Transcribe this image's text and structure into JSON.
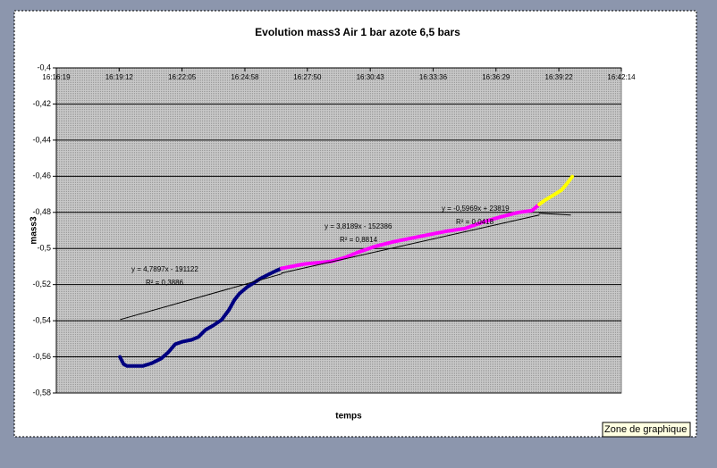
{
  "chart_data": {
    "type": "line",
    "title": "Evolution mass3 Air 1 bar azote 6,5 bars",
    "xlabel": "temps",
    "ylabel": "mass3",
    "xlim": [
      58579,
      60134
    ],
    "xticks": [
      {
        "value": 58579,
        "label": "16:16:19"
      },
      {
        "value": 58752,
        "label": "16:19:12"
      },
      {
        "value": 58925,
        "label": "16:22:05"
      },
      {
        "value": 59098,
        "label": "16:24:58"
      },
      {
        "value": 59270,
        "label": "16:27:50"
      },
      {
        "value": 59443,
        "label": "16:30:43"
      },
      {
        "value": 59616,
        "label": "16:33:36"
      },
      {
        "value": 59789,
        "label": "16:36:29"
      },
      {
        "value": 59962,
        "label": "16:39:22"
      },
      {
        "value": 60134,
        "label": "16:42:14"
      }
    ],
    "ylim": [
      -0.58,
      -0.4
    ],
    "yticks": [
      {
        "value": -0.4,
        "label": "-0,4"
      },
      {
        "value": -0.42,
        "label": "-0,42"
      },
      {
        "value": -0.44,
        "label": "-0,44"
      },
      {
        "value": -0.46,
        "label": "-0,46"
      },
      {
        "value": -0.48,
        "label": "-0,48"
      },
      {
        "value": -0.5,
        "label": "-0,5"
      },
      {
        "value": -0.52,
        "label": "-0,52"
      },
      {
        "value": -0.54,
        "label": "-0,54"
      },
      {
        "value": -0.56,
        "label": "-0,56"
      },
      {
        "value": -0.58,
        "label": "-0,58"
      }
    ],
    "grid": true,
    "series": [
      {
        "color": "#000080",
        "x": [
          58754,
          58764,
          58773,
          58793,
          58818,
          58842,
          58867,
          58887,
          58906,
          58926,
          58951,
          58970,
          58990,
          59010,
          59034,
          59054,
          59069,
          59083,
          59103,
          59123,
          59142,
          59162,
          59182,
          59199
        ],
        "values": [
          -0.56,
          -0.564,
          -0.565,
          -0.565,
          -0.565,
          -0.5635,
          -0.561,
          -0.5575,
          -0.553,
          -0.5516,
          -0.5506,
          -0.549,
          -0.545,
          -0.5427,
          -0.5395,
          -0.534,
          -0.5285,
          -0.525,
          -0.5215,
          -0.519,
          -0.5165,
          -0.5145,
          -0.5125,
          -0.511
        ]
      },
      {
        "color": "#ff00ff",
        "x": [
          59199,
          59261,
          59334,
          59371,
          59408,
          59457,
          59507,
          59556,
          59605,
          59654,
          59704,
          59753,
          59802,
          59851,
          59888,
          59908
        ],
        "values": [
          -0.511,
          -0.5086,
          -0.5072,
          -0.5052,
          -0.5022,
          -0.4988,
          -0.4963,
          -0.4943,
          -0.4923,
          -0.4904,
          -0.4889,
          -0.4854,
          -0.4825,
          -0.48,
          -0.479,
          -0.4756
        ]
      },
      {
        "color": "#ffff00",
        "x": [
          59908,
          59925,
          59950,
          59969,
          59984,
          59999
        ],
        "values": [
          -0.4756,
          -0.4731,
          -0.4701,
          -0.4677,
          -0.4642,
          -0.4602
        ]
      }
    ],
    "trendlines": [
      {
        "x": [
          58756,
          59199
        ],
        "values": [
          -0.5393,
          -0.5141
        ],
        "equation": "y = 4,7897x - 191122",
        "r2": "R² = 0,3886"
      },
      {
        "x": [
          59199,
          59908
        ],
        "values": [
          -0.5136,
          -0.4815
        ],
        "equation": "y = 3,8189x - 152386",
        "r2": "R² = 0,8814"
      },
      {
        "x": [
          59908,
          59994
        ],
        "values": [
          -0.4805,
          -0.4815
        ],
        "equation": "y = -0,5969x + 23819",
        "r2": "R² = 0,0418"
      }
    ]
  },
  "tooltip": "Zone de graphique"
}
